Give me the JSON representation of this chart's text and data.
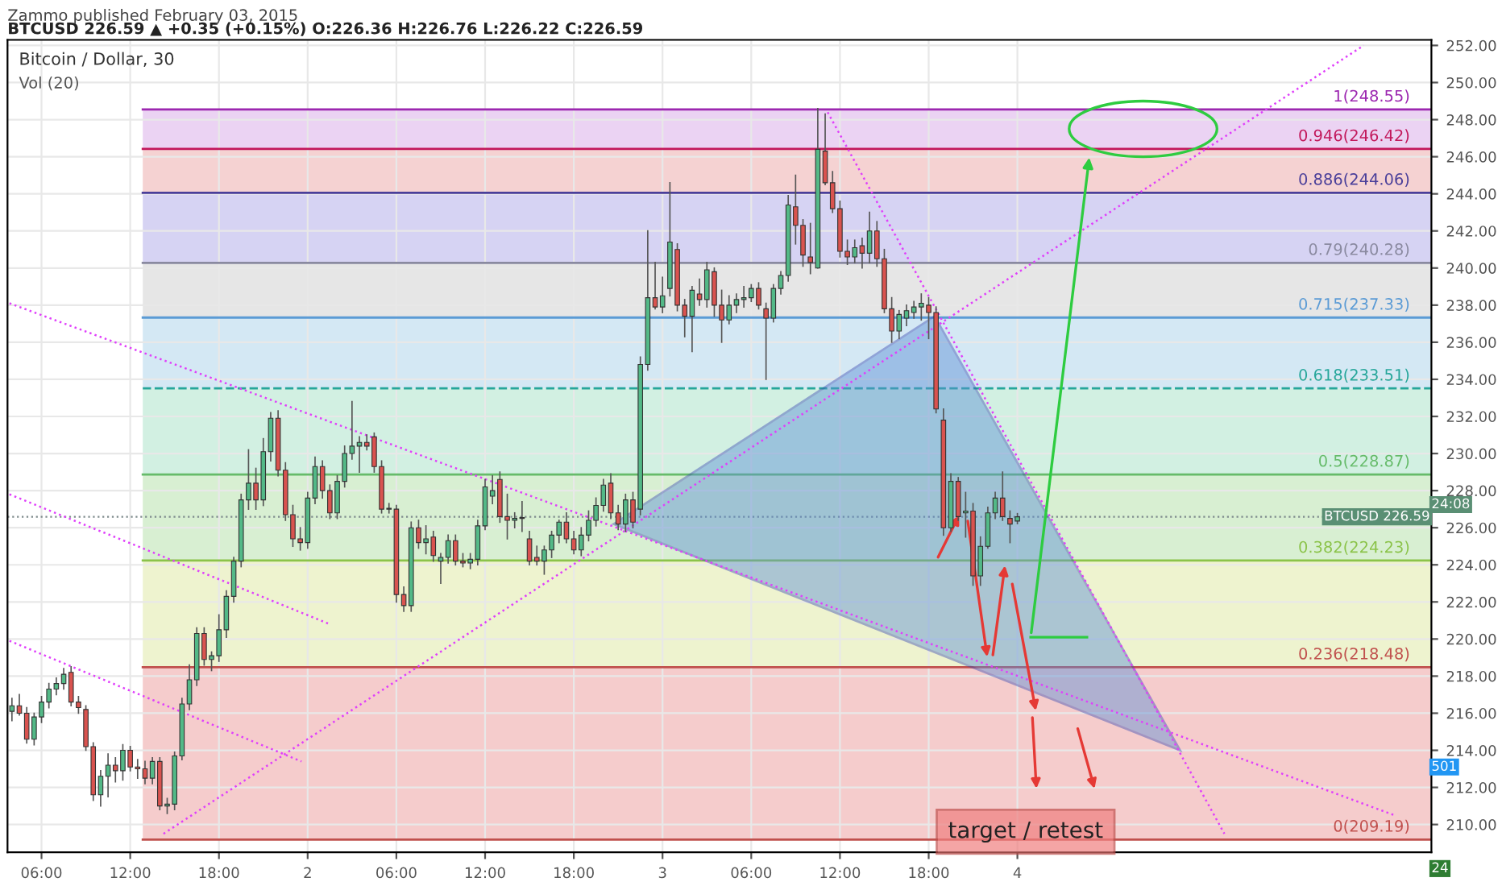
{
  "chart_data": {
    "type": "candlestick",
    "title": "Bitcoin / Dollar, 30",
    "subtitle": "BTCUSD 226.59 ▲ +0.35 (+0.15%) O:226.36 H:226.76 L:226.22 C:226.59",
    "annotations": [
      "Zammo published February 03, 2015",
      "Vol (20)",
      "24:08",
      "501",
      "24",
      "target / retest"
    ],
    "x": [
      "2015-02-01T04:00",
      "2015-02-01T04:30",
      "2015-02-01T05:00",
      "2015-02-01T05:30",
      "2015-02-01T06:00",
      "2015-02-01T06:30",
      "2015-02-01T07:00",
      "2015-02-01T07:30",
      "2015-02-01T08:00",
      "2015-02-01T08:30",
      "2015-02-01T09:00",
      "2015-02-01T09:30",
      "2015-02-01T10:00",
      "2015-02-01T10:30",
      "2015-02-01T11:00",
      "2015-02-01T11:30",
      "2015-02-01T12:00",
      "2015-02-01T12:30",
      "2015-02-01T13:00",
      "2015-02-01T13:30",
      "2015-02-01T14:00",
      "2015-02-01T14:30",
      "2015-02-01T15:00",
      "2015-02-01T15:30",
      "2015-02-01T16:00",
      "2015-02-01T16:30",
      "2015-02-01T17:00",
      "2015-02-01T17:30",
      "2015-02-01T18:00",
      "2015-02-01T18:30",
      "2015-02-01T19:00",
      "2015-02-01T19:30",
      "2015-02-01T20:00",
      "2015-02-01T20:30",
      "2015-02-01T21:00",
      "2015-02-01T21:30",
      "2015-02-01T22:00",
      "2015-02-01T22:30",
      "2015-02-01T23:00",
      "2015-02-01T23:30",
      "2015-02-02T00:00",
      "2015-02-02T00:30",
      "2015-02-02T01:00",
      "2015-02-02T01:30",
      "2015-02-02T02:00",
      "2015-02-02T02:30",
      "2015-02-02T03:00",
      "2015-02-02T03:30",
      "2015-02-02T04:00",
      "2015-02-02T04:30",
      "2015-02-02T05:00",
      "2015-02-02T05:30",
      "2015-02-02T06:00",
      "2015-02-02T06:30",
      "2015-02-02T07:00",
      "2015-02-02T07:30",
      "2015-02-02T08:00",
      "2015-02-02T08:30",
      "2015-02-02T09:00",
      "2015-02-02T09:30",
      "2015-02-02T10:00",
      "2015-02-02T10:30",
      "2015-02-02T11:00",
      "2015-02-02T11:30",
      "2015-02-02T12:00",
      "2015-02-02T12:30",
      "2015-02-02T13:00",
      "2015-02-02T13:30",
      "2015-02-02T14:00",
      "2015-02-02T14:30",
      "2015-02-02T15:00",
      "2015-02-02T15:30",
      "2015-02-02T16:00",
      "2015-02-02T16:30",
      "2015-02-02T17:00",
      "2015-02-02T17:30",
      "2015-02-02T18:00",
      "2015-02-02T18:30",
      "2015-02-02T19:00",
      "2015-02-02T19:30",
      "2015-02-02T20:00",
      "2015-02-02T20:30",
      "2015-02-02T21:00",
      "2015-02-02T21:30",
      "2015-02-02T22:00",
      "2015-02-02T22:30",
      "2015-02-02T23:00",
      "2015-02-02T23:30",
      "2015-02-03T00:00",
      "2015-02-03T00:30",
      "2015-02-03T01:00",
      "2015-02-03T01:30",
      "2015-02-03T02:00",
      "2015-02-03T02:30",
      "2015-02-03T03:00",
      "2015-02-03T03:30",
      "2015-02-03T04:00",
      "2015-02-03T04:30",
      "2015-02-03T05:00",
      "2015-02-03T05:30",
      "2015-02-03T06:00",
      "2015-02-03T06:30",
      "2015-02-03T07:00",
      "2015-02-03T07:30",
      "2015-02-03T08:00",
      "2015-02-03T08:30",
      "2015-02-03T09:00",
      "2015-02-03T09:30",
      "2015-02-03T10:00",
      "2015-02-03T10:30",
      "2015-02-03T11:00",
      "2015-02-03T11:30",
      "2015-02-03T12:00",
      "2015-02-03T12:30",
      "2015-02-03T13:00",
      "2015-02-03T13:30",
      "2015-02-03T14:00",
      "2015-02-03T14:30",
      "2015-02-03T15:00",
      "2015-02-03T15:30",
      "2015-02-03T16:00",
      "2015-02-03T16:30",
      "2015-02-03T17:00",
      "2015-02-03T17:30",
      "2015-02-03T18:00",
      "2015-02-03T18:30",
      "2015-02-03T19:00",
      "2015-02-03T19:30",
      "2015-02-03T20:00",
      "2015-02-03T20:30",
      "2015-02-03T21:00",
      "2015-02-03T21:30",
      "2015-02-03T22:00",
      "2015-02-03T22:30",
      "2015-02-03T23:00",
      "2015-02-03T23:30",
      "2015-02-04T00:00"
    ],
    "ohlc": [
      [
        216.1,
        216.8,
        215.6,
        216.4
      ],
      [
        216.4,
        217.0,
        215.9,
        216.0
      ],
      [
        216.0,
        216.3,
        214.4,
        214.6
      ],
      [
        214.6,
        216.0,
        214.3,
        215.8
      ],
      [
        215.8,
        216.9,
        215.5,
        216.6
      ],
      [
        216.6,
        217.6,
        216.3,
        217.3
      ],
      [
        217.3,
        217.9,
        217.0,
        217.6
      ],
      [
        217.6,
        218.4,
        217.3,
        218.1
      ],
      [
        218.2,
        218.5,
        216.4,
        216.6
      ],
      [
        216.6,
        216.9,
        216.0,
        216.3
      ],
      [
        216.2,
        216.4,
        214.0,
        214.2
      ],
      [
        214.2,
        214.4,
        211.3,
        211.6
      ],
      [
        211.6,
        212.9,
        211.0,
        212.6
      ],
      [
        212.6,
        213.8,
        211.5,
        213.2
      ],
      [
        213.2,
        213.6,
        212.3,
        212.9
      ],
      [
        212.9,
        214.3,
        212.4,
        214.0
      ],
      [
        214.0,
        214.2,
        212.9,
        213.1
      ],
      [
        213.1,
        213.5,
        212.5,
        213.0
      ],
      [
        213.0,
        213.4,
        212.2,
        212.5
      ],
      [
        212.5,
        213.6,
        212.2,
        213.4
      ],
      [
        213.4,
        213.6,
        210.8,
        211.0
      ],
      [
        211.0,
        211.4,
        210.6,
        211.1
      ],
      [
        211.1,
        213.9,
        210.8,
        213.7
      ],
      [
        213.7,
        216.8,
        213.5,
        216.5
      ],
      [
        216.5,
        218.6,
        216.2,
        217.8
      ],
      [
        217.8,
        220.6,
        217.5,
        220.3
      ],
      [
        220.3,
        220.6,
        218.6,
        218.9
      ],
      [
        218.9,
        219.3,
        218.3,
        219.1
      ],
      [
        219.1,
        221.3,
        218.8,
        220.5
      ],
      [
        220.5,
        222.6,
        220.1,
        222.3
      ],
      [
        222.3,
        224.4,
        222.0,
        224.2
      ],
      [
        224.2,
        227.8,
        223.9,
        227.5
      ],
      [
        227.5,
        230.2,
        227.0,
        228.4
      ],
      [
        228.4,
        229.2,
        227.0,
        227.5
      ],
      [
        227.5,
        230.8,
        227.2,
        230.1
      ],
      [
        230.1,
        232.2,
        229.6,
        231.9
      ],
      [
        231.9,
        232.3,
        228.8,
        229.1
      ],
      [
        229.1,
        229.5,
        226.4,
        226.7
      ],
      [
        226.7,
        227.2,
        225.0,
        225.4
      ],
      [
        225.4,
        226.0,
        224.8,
        225.2
      ],
      [
        225.2,
        227.9,
        224.9,
        227.6
      ],
      [
        227.6,
        229.8,
        227.3,
        229.3
      ],
      [
        229.3,
        229.6,
        227.6,
        228.0
      ],
      [
        228.0,
        228.3,
        226.5,
        226.8
      ],
      [
        226.8,
        228.8,
        226.5,
        228.5
      ],
      [
        228.5,
        230.4,
        228.2,
        230.0
      ],
      [
        230.0,
        232.8,
        229.7,
        230.4
      ],
      [
        230.4,
        230.9,
        229.0,
        230.6
      ],
      [
        230.6,
        231.0,
        230.2,
        230.4
      ],
      [
        230.9,
        231.1,
        229.0,
        229.3
      ],
      [
        229.3,
        229.6,
        226.8,
        227.0
      ],
      [
        227.0,
        227.3,
        226.8,
        227.0
      ],
      [
        227.0,
        227.2,
        222.0,
        222.4
      ],
      [
        222.4,
        222.8,
        221.5,
        221.8
      ],
      [
        221.8,
        226.3,
        221.5,
        226.0
      ],
      [
        226.0,
        226.4,
        224.9,
        225.2
      ],
      [
        225.2,
        226.1,
        224.6,
        225.4
      ],
      [
        225.5,
        225.8,
        224.2,
        224.5
      ],
      [
        224.2,
        224.6,
        223.0,
        224.4
      ],
      [
        224.4,
        225.6,
        224.1,
        225.3
      ],
      [
        225.3,
        225.6,
        224.0,
        224.2
      ],
      [
        224.2,
        224.6,
        223.9,
        224.1
      ],
      [
        224.1,
        224.6,
        223.8,
        224.3
      ],
      [
        224.3,
        226.4,
        224.0,
        226.1
      ],
      [
        226.1,
        228.6,
        225.9,
        228.2
      ],
      [
        227.7,
        228.8,
        227.3,
        228.0
      ],
      [
        228.6,
        229.0,
        226.3,
        226.6
      ],
      [
        226.6,
        227.8,
        225.4,
        226.4
      ],
      [
        226.4,
        226.8,
        226.0,
        226.5
      ],
      [
        226.5,
        227.4,
        225.8,
        226.5
      ],
      [
        225.4,
        225.8,
        224.0,
        224.2
      ],
      [
        224.4,
        225.0,
        224.0,
        224.2
      ],
      [
        224.2,
        225.0,
        223.5,
        224.8
      ],
      [
        224.8,
        225.8,
        224.4,
        225.6
      ],
      [
        225.6,
        226.4,
        225.2,
        226.3
      ],
      [
        226.3,
        226.8,
        225.2,
        225.4
      ],
      [
        225.4,
        225.8,
        224.6,
        224.8
      ],
      [
        224.8,
        226.0,
        224.5,
        225.6
      ],
      [
        225.6,
        226.9,
        225.3,
        226.4
      ],
      [
        226.4,
        227.6,
        226.1,
        227.2
      ],
      [
        227.2,
        228.6,
        226.9,
        228.3
      ],
      [
        228.4,
        228.9,
        226.5,
        226.8
      ],
      [
        226.8,
        227.2,
        225.9,
        226.2
      ],
      [
        226.2,
        227.8,
        225.8,
        227.5
      ],
      [
        227.5,
        227.9,
        226.0,
        226.3
      ],
      [
        227.0,
        235.2,
        226.7,
        234.8
      ],
      [
        234.8,
        242.0,
        234.5,
        238.4
      ],
      [
        238.4,
        240.3,
        237.8,
        237.9
      ],
      [
        237.9,
        239.5,
        237.6,
        238.5
      ],
      [
        238.9,
        244.6,
        238.5,
        241.4
      ],
      [
        241.0,
        241.3,
        237.7,
        238.0
      ],
      [
        238.0,
        238.3,
        236.3,
        237.4
      ],
      [
        237.4,
        239.0,
        235.5,
        238.8
      ],
      [
        238.6,
        239.4,
        238.0,
        238.3
      ],
      [
        238.3,
        240.3,
        237.9,
        239.9
      ],
      [
        239.8,
        240.0,
        237.4,
        238.0
      ],
      [
        238.0,
        238.8,
        236.0,
        237.2
      ],
      [
        237.2,
        238.5,
        237.0,
        238.0
      ],
      [
        238.0,
        238.6,
        237.6,
        238.3
      ],
      [
        238.3,
        239.0,
        237.9,
        238.4
      ],
      [
        238.4,
        239.1,
        238.2,
        238.9
      ],
      [
        238.9,
        239.2,
        237.8,
        238.0
      ],
      [
        237.8,
        238.1,
        234.0,
        237.3
      ],
      [
        237.3,
        239.1,
        237.1,
        238.9
      ],
      [
        238.9,
        239.8,
        238.6,
        239.6
      ],
      [
        239.6,
        243.9,
        239.3,
        243.4
      ],
      [
        243.3,
        245.0,
        241.3,
        242.3
      ],
      [
        242.3,
        242.6,
        240.1,
        240.7
      ],
      [
        240.6,
        242.4,
        239.7,
        240.3
      ],
      [
        240.0,
        248.6,
        240.0,
        246.4
      ],
      [
        246.3,
        248.3,
        244.5,
        244.6
      ],
      [
        244.6,
        245.2,
        243.0,
        243.2
      ],
      [
        243.2,
        243.6,
        240.6,
        240.9
      ],
      [
        240.9,
        241.5,
        240.2,
        240.6
      ],
      [
        240.6,
        241.5,
        240.3,
        241.1
      ],
      [
        241.2,
        241.6,
        240.0,
        240.8
      ],
      [
        240.8,
        243.0,
        240.3,
        242.0
      ],
      [
        242.0,
        242.5,
        240.1,
        240.5
      ],
      [
        240.5,
        241.0,
        237.6,
        237.8
      ],
      [
        237.8,
        238.4,
        236.0,
        236.6
      ],
      [
        236.6,
        237.7,
        236.2,
        237.5
      ],
      [
        237.3,
        238.0,
        236.9,
        237.7
      ],
      [
        237.6,
        238.2,
        237.3,
        237.9
      ],
      [
        237.9,
        238.6,
        237.2,
        238.1
      ],
      [
        238.0,
        238.4,
        236.2,
        237.6
      ],
      [
        237.6,
        237.9,
        232.2,
        232.4
      ],
      [
        231.8,
        232.4,
        225.6,
        226.0
      ],
      [
        226.0,
        228.9,
        225.8,
        228.5
      ],
      [
        228.5,
        228.7,
        226.4,
        226.6
      ],
      [
        226.8,
        227.9,
        225.5,
        226.9
      ],
      [
        226.9,
        227.3,
        222.9,
        223.4
      ],
      [
        223.4,
        225.5,
        222.9,
        225.0
      ],
      [
        225.0,
        227.1,
        224.9,
        226.8
      ],
      [
        226.8,
        227.9,
        226.5,
        227.6
      ],
      [
        227.6,
        229.0,
        226.4,
        226.6
      ],
      [
        226.5,
        226.9,
        225.2,
        226.2
      ],
      [
        226.36,
        226.76,
        226.22,
        226.59
      ]
    ],
    "series": [
      {
        "type": "line",
        "color": "#e040fb",
        "x": [
          "2015-02-01T03:50",
          "2015-02-05T01:30"
        ],
        "values": [
          238.1,
          210.5
        ]
      },
      {
        "type": "line",
        "color": "#e040fb",
        "x": [
          "2015-02-01T03:50",
          "2015-02-02T01:30"
        ],
        "values": [
          227.8,
          220.8
        ]
      },
      {
        "type": "line",
        "color": "#e040fb",
        "x": [
          "2015-02-01T03:50",
          "2015-02-01T23:35"
        ],
        "values": [
          219.9,
          213.4
        ]
      },
      {
        "type": "line",
        "color": "#e040fb",
        "x": [
          "2015-02-01T14:15",
          "2015-02-04T23:25"
        ],
        "values": [
          209.5,
          252.0
        ]
      },
      {
        "type": "line",
        "color": "#e040fb",
        "x": [
          "2015-02-03T11:10",
          "2015-02-04T14:00"
        ],
        "values": [
          248.4,
          209.5
        ]
      }
    ],
    "line_style": "dotted",
    "bands": [
      {
        "axis": "y",
        "from": 209.19,
        "to": 218.48,
        "color": "#f5cccc"
      },
      {
        "axis": "y",
        "from": 218.48,
        "to": 224.23,
        "color": "#eef3cf"
      },
      {
        "axis": "y",
        "from": 224.23,
        "to": 228.87,
        "color": "#d8efd2"
      },
      {
        "axis": "y",
        "from": 228.87,
        "to": 233.51,
        "color": "#d2f0e2"
      },
      {
        "axis": "y",
        "from": 233.51,
        "to": 237.33,
        "color": "#d4e8f4"
      },
      {
        "axis": "y",
        "from": 237.33,
        "to": 240.28,
        "color": "#e6e6e6"
      },
      {
        "axis": "y",
        "from": 240.28,
        "to": 244.06,
        "color": "#d6d3f3"
      },
      {
        "axis": "y",
        "from": 244.06,
        "to": 246.42,
        "color": "#f5d2d2"
      },
      {
        "axis": "y",
        "from": 246.42,
        "to": 248.55,
        "color": "#ebd3f3"
      }
    ],
    "ref_lines": [
      {
        "axis": "y",
        "value": 248.55,
        "label": "1(248.55)",
        "color": "#9c27b0"
      },
      {
        "axis": "y",
        "value": 246.42,
        "label": "0.946(246.42)",
        "color": "#c2185b"
      },
      {
        "axis": "y",
        "value": 244.06,
        "label": "0.886(244.06)",
        "color": "#4a3f9a"
      },
      {
        "axis": "y",
        "value": 240.28,
        "label": "0.79(240.28)",
        "color": "#8a8aa0"
      },
      {
        "axis": "y",
        "value": 237.33,
        "label": "0.715(237.33)",
        "color": "#5b9bd5"
      },
      {
        "axis": "y",
        "value": 233.51,
        "label": "0.618(233.51)",
        "color": "#26a69a",
        "line_style": "dashed"
      },
      {
        "axis": "y",
        "value": 228.87,
        "label": "0.5(228.87)",
        "color": "#66bb6a"
      },
      {
        "axis": "y",
        "value": 224.23,
        "label": "0.382(224.23)",
        "color": "#8bc34a"
      },
      {
        "axis": "y",
        "value": 218.48,
        "label": "0.236(218.48)",
        "color": "#c0504d"
      },
      {
        "axis": "y",
        "value": 209.19,
        "label": "0(209.19)",
        "color": "#c0504d"
      },
      {
        "axis": "y",
        "value": 226.59,
        "label": "BTCUSD 226.59",
        "color": "#7f8c8d",
        "line_style": "dotted"
      }
    ],
    "xlim": [
      "2015-02-01T03:42",
      "2015-02-05T04:00"
    ],
    "xticks": [
      {
        "value": "2015-02-01T06:00",
        "label": "06:00"
      },
      {
        "value": "2015-02-01T12:00",
        "label": "12:00"
      },
      {
        "value": "2015-02-01T18:00",
        "label": "18:00"
      },
      {
        "value": "2015-02-02T00:00",
        "label": "2"
      },
      {
        "value": "2015-02-02T06:00",
        "label": "06:00"
      },
      {
        "value": "2015-02-02T12:00",
        "label": "12:00"
      },
      {
        "value": "2015-02-02T18:00",
        "label": "18:00"
      },
      {
        "value": "2015-02-03T00:00",
        "label": "3"
      },
      {
        "value": "2015-02-03T06:00",
        "label": "06:00"
      },
      {
        "value": "2015-02-03T12:00",
        "label": "12:00"
      },
      {
        "value": "2015-02-03T18:00",
        "label": "18:00"
      },
      {
        "value": "2015-02-04T00:00",
        "label": "4"
      }
    ],
    "ylim": [
      208.5,
      252.3
    ],
    "yticks": [
      {
        "value": 210,
        "label": "210.00"
      },
      {
        "value": 212,
        "label": "212.00"
      },
      {
        "value": 214,
        "label": "214.00"
      },
      {
        "value": 216,
        "label": "216.00"
      },
      {
        "value": 218,
        "label": "218.00"
      },
      {
        "value": 220,
        "label": "220.00"
      },
      {
        "value": 222,
        "label": "222.00"
      },
      {
        "value": 224,
        "label": "224.00"
      },
      {
        "value": 226,
        "label": "226.00"
      },
      {
        "value": 228,
        "label": "228.00"
      },
      {
        "value": 230,
        "label": "230.00"
      },
      {
        "value": 232,
        "label": "232.00"
      },
      {
        "value": 234,
        "label": "234.00"
      },
      {
        "value": 236,
        "label": "236.00"
      },
      {
        "value": 238,
        "label": "238.00"
      },
      {
        "value": 240,
        "label": "240.00"
      },
      {
        "value": 242,
        "label": "242.00"
      },
      {
        "value": 244,
        "label": "244.00"
      },
      {
        "value": 246,
        "label": "246.00"
      },
      {
        "value": 248,
        "label": "248.00"
      },
      {
        "value": 250,
        "label": "250.00"
      },
      {
        "value": 252,
        "label": "252.00"
      }
    ],
    "grid": true
  }
}
